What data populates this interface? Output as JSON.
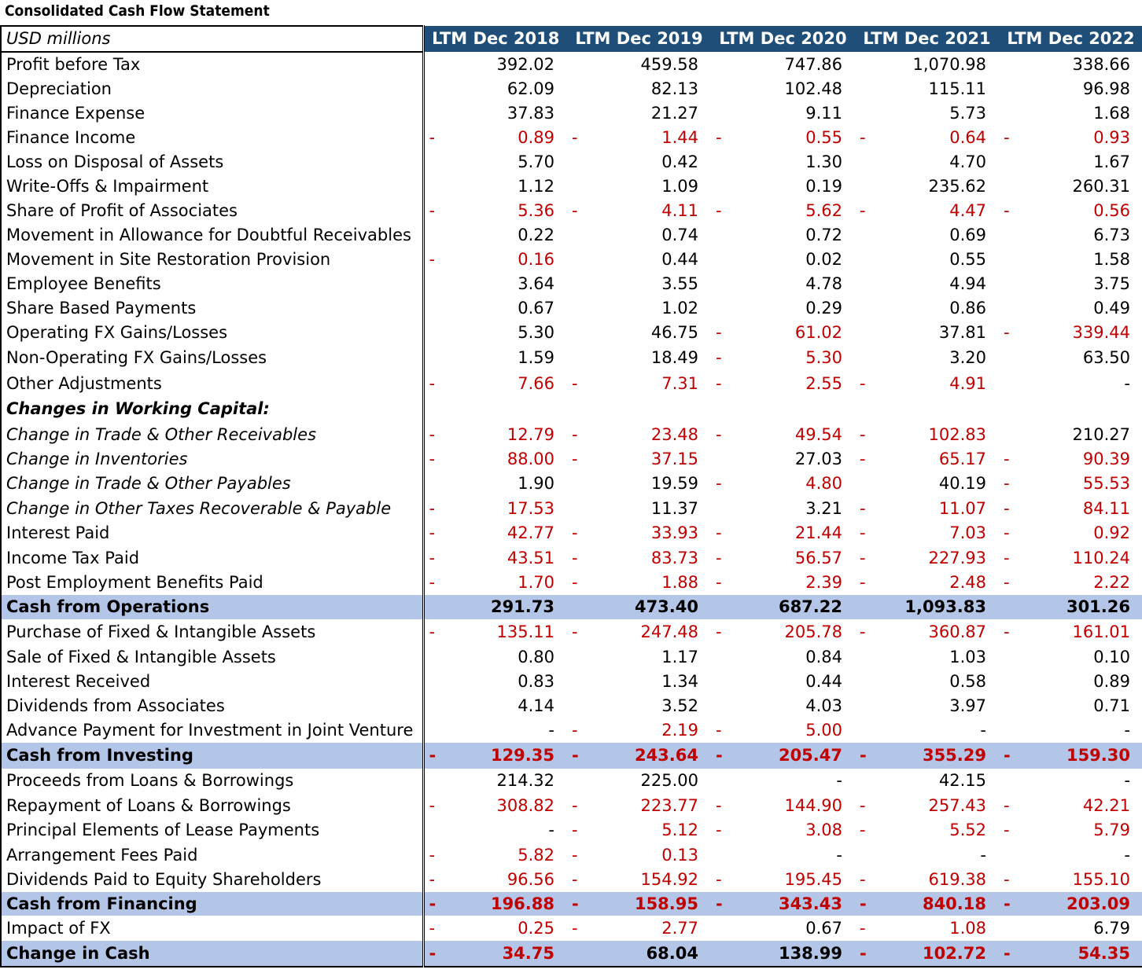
{
  "title": "Consolidated Cash Flow Statement",
  "units": "USD millions",
  "years": [
    "LTM Dec 2018",
    "LTM Dec 2019",
    "LTM Dec 2020",
    "LTM Dec 2021",
    "LTM Dec 2022"
  ],
  "colors": {
    "header_bg": "#1f4e78",
    "total_bg": "#b4c6e7",
    "negative": "#c00000"
  },
  "rows": [
    {
      "label": "Profit before Tax",
      "style": "normal",
      "values": [
        "392.02",
        "459.58",
        "747.86",
        "1,070.98",
        "338.66"
      ],
      "neg": [
        false,
        false,
        false,
        false,
        false
      ]
    },
    {
      "label": "Depreciation",
      "style": "normal",
      "values": [
        "62.09",
        "82.13",
        "102.48",
        "115.11",
        "96.98"
      ],
      "neg": [
        false,
        false,
        false,
        false,
        false
      ]
    },
    {
      "label": "Finance Expense",
      "style": "normal",
      "values": [
        "37.83",
        "21.27",
        "9.11",
        "5.73",
        "1.68"
      ],
      "neg": [
        false,
        false,
        false,
        false,
        false
      ]
    },
    {
      "label": "Finance Income",
      "style": "normal",
      "values": [
        "0.89",
        "1.44",
        "0.55",
        "0.64",
        "0.93"
      ],
      "neg": [
        true,
        true,
        true,
        true,
        true
      ]
    },
    {
      "label": "Loss on Disposal of Assets",
      "style": "normal",
      "values": [
        "5.70",
        "0.42",
        "1.30",
        "4.70",
        "1.67"
      ],
      "neg": [
        false,
        false,
        false,
        false,
        false
      ]
    },
    {
      "label": "Write-Offs & Impairment",
      "style": "normal",
      "values": [
        "1.12",
        "1.09",
        "0.19",
        "235.62",
        "260.31"
      ],
      "neg": [
        false,
        false,
        false,
        false,
        false
      ]
    },
    {
      "label": "Share of Profit of Associates",
      "style": "normal",
      "values": [
        "5.36",
        "4.11",
        "5.62",
        "4.47",
        "0.56"
      ],
      "neg": [
        true,
        true,
        true,
        true,
        true
      ]
    },
    {
      "label": "Movement in Allowance for Doubtful Receivables",
      "style": "normal",
      "values": [
        "0.22",
        "0.74",
        "0.72",
        "0.69",
        "6.73"
      ],
      "neg": [
        false,
        false,
        false,
        false,
        false
      ]
    },
    {
      "label": "Movement in Site Restoration Provision",
      "style": "normal",
      "values": [
        "0.16",
        "0.44",
        "0.02",
        "0.55",
        "1.58"
      ],
      "neg": [
        true,
        false,
        false,
        false,
        false
      ]
    },
    {
      "label": "Employee Benefits",
      "style": "normal",
      "values": [
        "3.64",
        "3.55",
        "4.78",
        "4.94",
        "3.75"
      ],
      "neg": [
        false,
        false,
        false,
        false,
        false
      ]
    },
    {
      "label": "Share Based Payments",
      "style": "normal",
      "values": [
        "0.67",
        "1.02",
        "0.29",
        "0.86",
        "0.49"
      ],
      "neg": [
        false,
        false,
        false,
        false,
        false
      ]
    },
    {
      "label": "Operating FX Gains/Losses",
      "style": "normal",
      "values": [
        "5.30",
        "46.75",
        "61.02",
        "37.81",
        "339.44"
      ],
      "neg": [
        false,
        false,
        true,
        false,
        true
      ]
    },
    {
      "label": "Non-Operating FX Gains/Losses",
      "style": "normal",
      "values": [
        "1.59",
        "18.49",
        "5.30",
        "3.20",
        "63.50"
      ],
      "neg": [
        false,
        false,
        true,
        false,
        false
      ]
    },
    {
      "label": "Other Adjustments",
      "style": "normal",
      "values": [
        "7.66",
        "7.31",
        "2.55",
        "4.91",
        "-"
      ],
      "neg": [
        true,
        true,
        true,
        true,
        false
      ]
    },
    {
      "label": "Changes in Working Capital:",
      "style": "section",
      "values": [
        "",
        "",
        "",
        "",
        ""
      ],
      "neg": [
        false,
        false,
        false,
        false,
        false
      ]
    },
    {
      "label": "Change in Trade & Other Receivables",
      "style": "italic",
      "values": [
        "12.79",
        "23.48",
        "49.54",
        "102.83",
        "210.27"
      ],
      "neg": [
        true,
        true,
        true,
        true,
        false
      ]
    },
    {
      "label": "Change in Inventories",
      "style": "italic",
      "values": [
        "88.00",
        "37.15",
        "27.03",
        "65.17",
        "90.39"
      ],
      "neg": [
        true,
        true,
        false,
        true,
        true
      ]
    },
    {
      "label": "Change in Trade & Other Payables",
      "style": "italic",
      "values": [
        "1.90",
        "19.59",
        "4.80",
        "40.19",
        "55.53"
      ],
      "neg": [
        false,
        false,
        true,
        false,
        true
      ]
    },
    {
      "label": "Change in Other Taxes Recoverable & Payable",
      "style": "italic",
      "values": [
        "17.53",
        "11.37",
        "3.21",
        "11.07",
        "84.11"
      ],
      "neg": [
        true,
        false,
        false,
        true,
        true
      ]
    },
    {
      "label": "Interest Paid",
      "style": "normal",
      "values": [
        "42.77",
        "33.93",
        "21.44",
        "7.03",
        "0.92"
      ],
      "neg": [
        true,
        true,
        true,
        true,
        true
      ]
    },
    {
      "label": "Income Tax Paid",
      "style": "normal",
      "values": [
        "43.51",
        "83.73",
        "56.57",
        "227.93",
        "110.24"
      ],
      "neg": [
        true,
        true,
        true,
        true,
        true
      ]
    },
    {
      "label": "Post Employment Benefits Paid",
      "style": "normal",
      "values": [
        "1.70",
        "1.88",
        "2.39",
        "2.48",
        "2.22"
      ],
      "neg": [
        true,
        true,
        true,
        true,
        true
      ]
    },
    {
      "label": "Cash from Operations",
      "style": "total",
      "values": [
        "291.73",
        "473.40",
        "687.22",
        "1,093.83",
        "301.26"
      ],
      "neg": [
        false,
        false,
        false,
        false,
        false
      ]
    },
    {
      "label": "Purchase of Fixed & Intangible Assets",
      "style": "normal",
      "values": [
        "135.11",
        "247.48",
        "205.78",
        "360.87",
        "161.01"
      ],
      "neg": [
        true,
        true,
        true,
        true,
        true
      ]
    },
    {
      "label": "Sale of Fixed & Intangible Assets",
      "style": "normal",
      "values": [
        "0.80",
        "1.17",
        "0.84",
        "1.03",
        "0.10"
      ],
      "neg": [
        false,
        false,
        false,
        false,
        false
      ]
    },
    {
      "label": "Interest Received",
      "style": "normal",
      "values": [
        "0.83",
        "1.34",
        "0.44",
        "0.58",
        "0.89"
      ],
      "neg": [
        false,
        false,
        false,
        false,
        false
      ]
    },
    {
      "label": "Dividends from Associates",
      "style": "normal",
      "values": [
        "4.14",
        "3.52",
        "4.03",
        "3.97",
        "0.71"
      ],
      "neg": [
        false,
        false,
        false,
        false,
        false
      ]
    },
    {
      "label": "Advance Payment for Investment in Joint Venture",
      "style": "normal",
      "values": [
        "-",
        "2.19",
        "5.00",
        "-",
        "-"
      ],
      "neg": [
        false,
        true,
        true,
        false,
        false
      ]
    },
    {
      "label": "Cash from Investing",
      "style": "total",
      "values": [
        "129.35",
        "243.64",
        "205.47",
        "355.29",
        "159.30"
      ],
      "neg": [
        true,
        true,
        true,
        true,
        true
      ]
    },
    {
      "label": "Proceeds from Loans & Borrowings",
      "style": "normal",
      "values": [
        "214.32",
        "225.00",
        "-",
        "42.15",
        "-"
      ],
      "neg": [
        false,
        false,
        false,
        false,
        false
      ]
    },
    {
      "label": "Repayment of Loans & Borrowings",
      "style": "normal",
      "values": [
        "308.82",
        "223.77",
        "144.90",
        "257.43",
        "42.21"
      ],
      "neg": [
        true,
        true,
        true,
        true,
        true
      ]
    },
    {
      "label": "Principal Elements of Lease Payments",
      "style": "normal",
      "values": [
        "-",
        "5.12",
        "3.08",
        "5.52",
        "5.79"
      ],
      "neg": [
        false,
        true,
        true,
        true,
        true
      ]
    },
    {
      "label": "Arrangement Fees Paid",
      "style": "normal",
      "values": [
        "5.82",
        "0.13",
        "-",
        "-",
        "-"
      ],
      "neg": [
        true,
        true,
        false,
        false,
        false
      ]
    },
    {
      "label": "Dividends Paid to Equity Shareholders",
      "style": "normal",
      "values": [
        "96.56",
        "154.92",
        "195.45",
        "619.38",
        "155.10"
      ],
      "neg": [
        true,
        true,
        true,
        true,
        true
      ]
    },
    {
      "label": "Cash from Financing",
      "style": "total",
      "values": [
        "196.88",
        "158.95",
        "343.43",
        "840.18",
        "203.09"
      ],
      "neg": [
        true,
        true,
        true,
        true,
        true
      ]
    },
    {
      "label": "Impact of FX",
      "style": "normal",
      "values": [
        "0.25",
        "2.77",
        "0.67",
        "1.08",
        "6.79"
      ],
      "neg": [
        true,
        true,
        false,
        true,
        false
      ]
    },
    {
      "label": "Change in Cash",
      "style": "total",
      "values": [
        "34.75",
        "68.04",
        "138.99",
        "102.72",
        "54.35"
      ],
      "neg": [
        true,
        false,
        false,
        true,
        true
      ]
    }
  ]
}
